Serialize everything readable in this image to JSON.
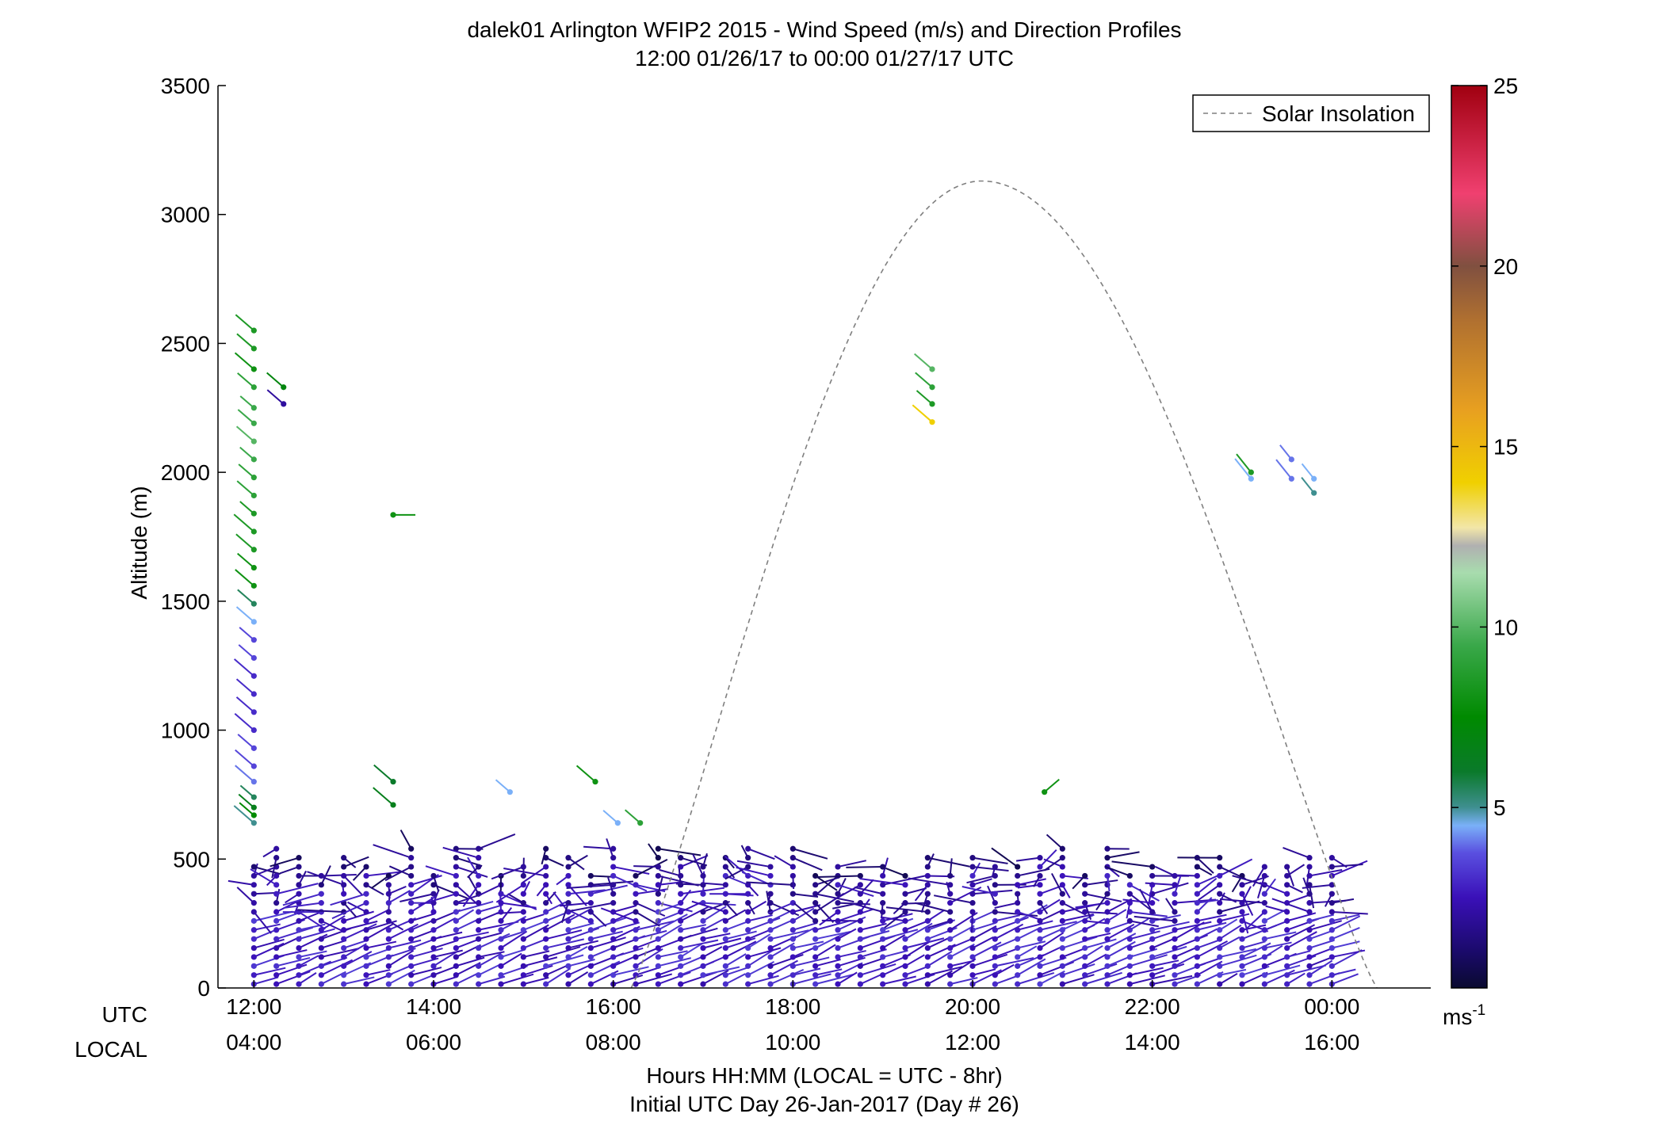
{
  "title_line1": "dalek01 Arlington WFIP2 2015 - Wind Speed (m/s) and Direction Profiles",
  "title_line2": "12:00 01/26/17 to 00:00 01/27/17  UTC",
  "ylabel": "Altitude (m)",
  "row_label_utc": "UTC",
  "row_label_local": "LOCAL",
  "xlabel_line1": "Hours HH:MM  (LOCAL = UTC - 8hr)",
  "xlabel_line2": "Initial UTC Day 26-Jan-2017 (Day # 26)",
  "legend_label": "Solar Insolation",
  "colorbar_unit_base": "ms",
  "colorbar_unit_exp": "-1",
  "colors": {
    "solar_line": "#7f7f7f",
    "axis": "#000000"
  },
  "chart_data": {
    "type": "scatter",
    "subtype": "wind-barb profile",
    "title": "dalek01 Arlington WFIP2 2015 - Wind Speed (m/s) and Direction Profiles",
    "subtitle": "12:00 01/26/17 to 00:00 01/27/17  UTC",
    "ylabel": "Altitude (m)",
    "xlabel": "Hours HH:MM  (LOCAL = UTC - 8hr)",
    "ylim": [
      0,
      3500
    ],
    "yticks": [
      0,
      500,
      1000,
      1500,
      2000,
      2500,
      3000,
      3500
    ],
    "xlim_hours_utc": [
      11.6,
      25.1
    ],
    "xticks_hours_utc": [
      12,
      14,
      16,
      18,
      20,
      22,
      24
    ],
    "xtick_labels_utc": [
      "12:00",
      "14:00",
      "16:00",
      "18:00",
      "20:00",
      "22:00",
      "00:00"
    ],
    "xtick_labels_local": [
      "04:00",
      "06:00",
      "08:00",
      "10:00",
      "12:00",
      "14:00",
      "16:00"
    ],
    "colorbar": {
      "label": "ms-1",
      "range": [
        0,
        25
      ],
      "ticks": [
        5,
        10,
        15,
        20,
        25
      ]
    },
    "legend": {
      "entries": [
        "Solar Insolation"
      ],
      "placement": "top-right"
    },
    "solar_insolation": {
      "style": "dashed",
      "start_hour_utc": 16.2,
      "peak_hour_utc": 20.1,
      "end_hour_utc": 24.5,
      "peak_altitude_equiv": 3130
    },
    "profiles": {
      "columns_count": 49,
      "time_step_hours": 0.25,
      "start_hour_utc": 12.0,
      "typical_top_m": 500,
      "typical_speed_ms": "2-4",
      "gate_spacing_m": 35
    },
    "extra_points": [
      {
        "t": 12.0,
        "z": 2550,
        "ws": 8.5
      },
      {
        "t": 12.0,
        "z": 2480,
        "ws": 8.5
      },
      {
        "t": 12.0,
        "z": 2400,
        "ws": 8.0
      },
      {
        "t": 12.0,
        "z": 2330,
        "ws": 9.0
      },
      {
        "t": 12.0,
        "z": 2250,
        "ws": 9.5
      },
      {
        "t": 12.0,
        "z": 2190,
        "ws": 9.5
      },
      {
        "t": 12.0,
        "z": 2120,
        "ws": 10.0
      },
      {
        "t": 12.0,
        "z": 2050,
        "ws": 9.5
      },
      {
        "t": 12.0,
        "z": 1980,
        "ws": 9.0
      },
      {
        "t": 12.0,
        "z": 1910,
        "ws": 9.0
      },
      {
        "t": 12.0,
        "z": 1840,
        "ws": 8.5
      },
      {
        "t": 12.0,
        "z": 1770,
        "ws": 8.5
      },
      {
        "t": 12.0,
        "z": 1700,
        "ws": 8.5
      },
      {
        "t": 12.0,
        "z": 1630,
        "ws": 8.0
      },
      {
        "t": 12.0,
        "z": 1560,
        "ws": 8.0
      },
      {
        "t": 12.0,
        "z": 1490,
        "ws": 5.5
      },
      {
        "t": 12.0,
        "z": 1420,
        "ws": 4.5
      },
      {
        "t": 12.0,
        "z": 1350,
        "ws": 3.5
      },
      {
        "t": 12.0,
        "z": 1280,
        "ws": 3.5
      },
      {
        "t": 12.0,
        "z": 1210,
        "ws": 3.0
      },
      {
        "t": 12.0,
        "z": 1140,
        "ws": 3.0
      },
      {
        "t": 12.0,
        "z": 1070,
        "ws": 3.0
      },
      {
        "t": 12.0,
        "z": 1000,
        "ws": 3.0
      },
      {
        "t": 12.0,
        "z": 930,
        "ws": 3.5
      },
      {
        "t": 12.0,
        "z": 860,
        "ws": 3.5
      },
      {
        "t": 12.0,
        "z": 800,
        "ws": 4.0
      },
      {
        "t": 12.0,
        "z": 740,
        "ws": 5.5
      },
      {
        "t": 12.0,
        "z": 700,
        "ws": 6.5
      },
      {
        "t": 12.0,
        "z": 670,
        "ws": 7.5
      },
      {
        "t": 12.0,
        "z": 640,
        "ws": 5.0
      },
      {
        "t": 12.33,
        "z": 2330,
        "ws": 7.0
      },
      {
        "t": 12.33,
        "z": 2265,
        "ws": 2.0
      },
      {
        "t": 13.55,
        "z": 1835,
        "ws": 8.0
      },
      {
        "t": 13.55,
        "z": 800,
        "ws": 6.0
      },
      {
        "t": 13.55,
        "z": 710,
        "ws": 6.5
      },
      {
        "t": 14.85,
        "z": 760,
        "ws": 4.5
      },
      {
        "t": 15.8,
        "z": 800,
        "ws": 8.0
      },
      {
        "t": 16.05,
        "z": 640,
        "ws": 4.5
      },
      {
        "t": 16.3,
        "z": 640,
        "ws": 9.0
      },
      {
        "t": 19.55,
        "z": 2400,
        "ws": 10.0
      },
      {
        "t": 19.55,
        "z": 2330,
        "ws": 9.0
      },
      {
        "t": 19.55,
        "z": 2265,
        "ws": 8.5
      },
      {
        "t": 19.55,
        "z": 2195,
        "ws": 14.5
      },
      {
        "t": 20.8,
        "z": 760,
        "ws": 8.0
      },
      {
        "t": 23.1,
        "z": 2000,
        "ws": 8.5
      },
      {
        "t": 23.1,
        "z": 1975,
        "ws": 4.5
      },
      {
        "t": 23.55,
        "z": 2050,
        "ws": 4.0
      },
      {
        "t": 23.55,
        "z": 1975,
        "ws": 4.0
      },
      {
        "t": 23.8,
        "z": 1975,
        "ws": 4.5
      },
      {
        "t": 23.8,
        "z": 1920,
        "ws": 5.0
      }
    ]
  }
}
